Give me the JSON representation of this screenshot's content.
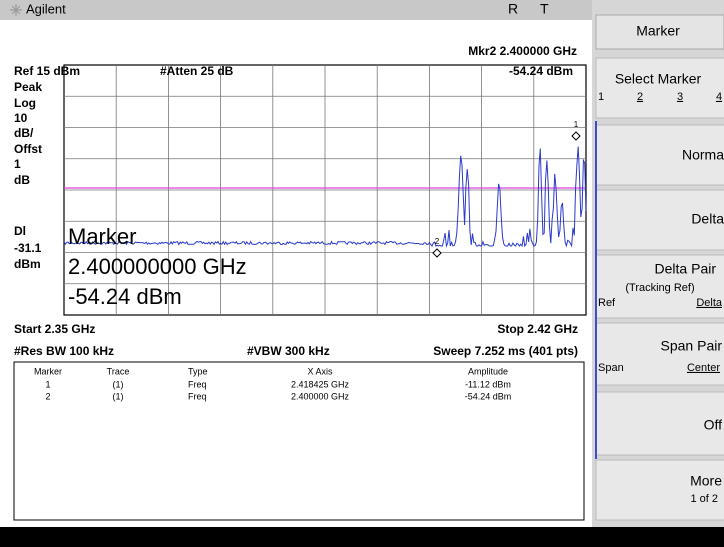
{
  "header": {
    "brand": "Agilent",
    "status": [
      "R",
      "T"
    ]
  },
  "screen": {
    "marker_readout": {
      "label": "Mkr2 2.400000 GHz",
      "amplitude": "-54.24 dBm"
    },
    "ref": "Ref 15 dBm",
    "atten": "#Atten 25 dB",
    "scale_labels": [
      "Peak",
      "Log",
      "10",
      "dB/",
      "Offst",
      "1",
      "dB"
    ],
    "display_line_labels": [
      "Dl",
      "-31.1",
      "dBm"
    ],
    "overlay": [
      "Marker",
      "2.400000000 GHz",
      "-54.24 dBm"
    ],
    "marker_labels": [
      "1",
      "2"
    ],
    "start": "Start 2.35 GHz",
    "stop": "Stop 2.42 GHz",
    "res_bw": "#Res BW 100 kHz",
    "vbw": "#VBW 300 kHz",
    "sweep": "Sweep 7.252 ms (401 pts)"
  },
  "marker_table": {
    "columns": [
      "Marker",
      "Trace",
      "Type",
      "X Axis",
      "Amplitude"
    ],
    "rows": [
      [
        "1",
        "(1)",
        "Freq",
        "2.418425 GHz",
        "-11.12 dBm"
      ],
      [
        "2",
        "(1)",
        "Freq",
        "2.400000 GHz",
        "-54.24 dBm"
      ]
    ]
  },
  "softkeys": {
    "title": "Marker",
    "keys": [
      {
        "label": "Select Marker",
        "options": [
          "1",
          "2",
          "3",
          "4"
        ]
      },
      {
        "label": "Norma"
      },
      {
        "label": "Delta"
      },
      {
        "label": "Delta Pair",
        "sub": "(Tracking Ref)",
        "options": [
          "Ref",
          "Delta"
        ]
      },
      {
        "label": "Span Pair",
        "options": [
          "Span",
          "Center"
        ]
      },
      {
        "label": "Off"
      },
      {
        "label": "More",
        "sub": "1 of 2"
      }
    ]
  }
}
